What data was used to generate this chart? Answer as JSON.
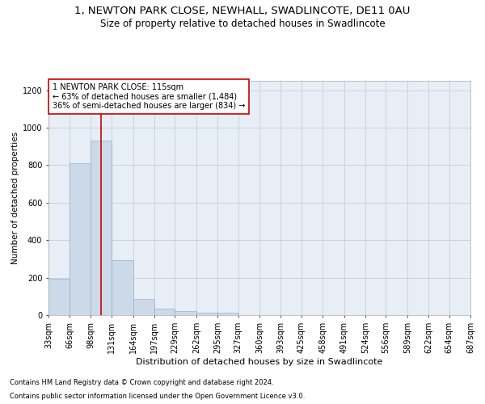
{
  "title_line1": "1, NEWTON PARK CLOSE, NEWHALL, SWADLINCOTE, DE11 0AU",
  "title_line2": "Size of property relative to detached houses in Swadlincote",
  "xlabel": "Distribution of detached houses by size in Swadlincote",
  "ylabel": "Number of detached properties",
  "footnote1": "Contains HM Land Registry data © Crown copyright and database right 2024.",
  "footnote2": "Contains public sector information licensed under the Open Government Licence v3.0.",
  "annotation_line1": "1 NEWTON PARK CLOSE: 115sqm",
  "annotation_line2": "← 63% of detached houses are smaller (1,484)",
  "annotation_line3": "36% of semi-detached houses are larger (834) →",
  "property_size_sqm": 115,
  "bar_color": "#ccd9e8",
  "bar_edge_color": "#9ab0cc",
  "vline_color": "#cc0000",
  "annotation_box_edge": "#cc0000",
  "background_color": "#e8eef5",
  "grid_color": "#c8d4de",
  "bin_edges": [
    33,
    66,
    98,
    131,
    164,
    197,
    229,
    262,
    295,
    327,
    360,
    393,
    425,
    458,
    491,
    524,
    556,
    589,
    622,
    654,
    687
  ],
  "bar_heights": [
    192,
    810,
    929,
    295,
    88,
    35,
    20,
    14,
    11,
    0,
    0,
    0,
    0,
    0,
    0,
    0,
    0,
    0,
    0,
    0
  ],
  "ylim": [
    0,
    1250
  ],
  "yticks": [
    0,
    200,
    400,
    600,
    800,
    1000,
    1200
  ],
  "title1_fontsize": 9.5,
  "title2_fontsize": 8.5,
  "xlabel_fontsize": 8,
  "ylabel_fontsize": 7.5,
  "tick_fontsize": 7,
  "annotation_fontsize": 7,
  "footnote_fontsize": 6
}
